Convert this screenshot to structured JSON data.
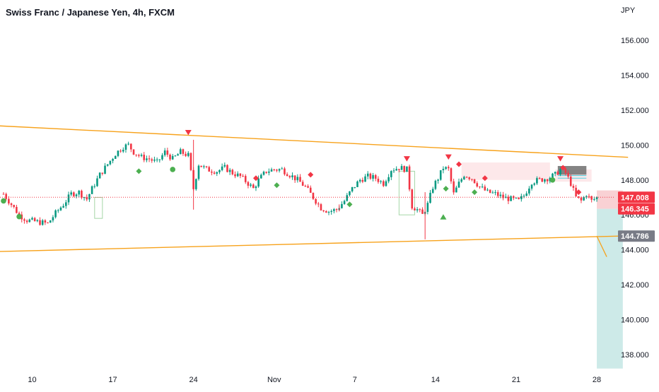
{
  "header": {
    "title": "Swiss Franc / Japanese Yen, 4h, FXCM"
  },
  "price_axis": {
    "currency_label": "JPY"
  },
  "colors": {
    "up": "#089981",
    "down": "#f23645",
    "trend_line": "#f7a21b",
    "last_price_label": "#f23645",
    "gray_label": "#787b86",
    "target_zone": "#b2dfdb",
    "stop_zone": "#f8c9cc",
    "marker_green": "#4caf50",
    "marker_red": "#f23645"
  },
  "chart_data": {
    "type": "candlestick",
    "title": "Swiss Franc / Japanese Yen, 4h, FXCM",
    "ylim": [
      137.0,
      158.0
    ],
    "y_ticks": [
      "156.000",
      "154.000",
      "152.000",
      "150.000",
      "148.000",
      "146.000",
      "144.000",
      "142.000",
      "140.000",
      "138.000"
    ],
    "x_ticks": [
      "10",
      "17",
      "24",
      "Nov",
      "7",
      "14",
      "21",
      "28"
    ],
    "x_tick_index": [
      11,
      42,
      73,
      104,
      135,
      166,
      197,
      228
    ],
    "grid": false,
    "price_series": [
      {
        "i": 0,
        "p": 147.2
      },
      {
        "i": 3,
        "p": 146.6
      },
      {
        "i": 6,
        "p": 146.0
      },
      {
        "i": 9,
        "p": 145.7
      },
      {
        "i": 13,
        "p": 145.6
      },
      {
        "i": 17,
        "p": 145.5
      },
      {
        "i": 20,
        "p": 146.1
      },
      {
        "i": 23,
        "p": 146.6
      },
      {
        "i": 26,
        "p": 147.2
      },
      {
        "i": 29,
        "p": 147.3
      },
      {
        "i": 32,
        "p": 146.9
      },
      {
        "i": 34,
        "p": 147.5
      },
      {
        "i": 37,
        "p": 148.3
      },
      {
        "i": 40,
        "p": 148.9
      },
      {
        "i": 43,
        "p": 149.5
      },
      {
        "i": 46,
        "p": 149.9
      },
      {
        "i": 48,
        "p": 150.0
      },
      {
        "i": 50,
        "p": 149.6
      },
      {
        "i": 53,
        "p": 149.3
      },
      {
        "i": 56,
        "p": 149.2
      },
      {
        "i": 59,
        "p": 149.0
      },
      {
        "i": 62,
        "p": 149.6
      },
      {
        "i": 65,
        "p": 149.2
      },
      {
        "i": 68,
        "p": 149.6
      },
      {
        "i": 71,
        "p": 149.4
      },
      {
        "i": 73,
        "p": 147.5
      },
      {
        "i": 75,
        "p": 148.9
      },
      {
        "i": 78,
        "p": 148.6
      },
      {
        "i": 82,
        "p": 148.5
      },
      {
        "i": 85,
        "p": 148.7
      },
      {
        "i": 88,
        "p": 148.4
      },
      {
        "i": 91,
        "p": 148.2
      },
      {
        "i": 94,
        "p": 147.8
      },
      {
        "i": 96,
        "p": 147.5
      },
      {
        "i": 98,
        "p": 148.0
      },
      {
        "i": 101,
        "p": 148.5
      },
      {
        "i": 104,
        "p": 148.6
      },
      {
        "i": 107,
        "p": 148.6
      },
      {
        "i": 110,
        "p": 148.3
      },
      {
        "i": 113,
        "p": 148.0
      },
      {
        "i": 116,
        "p": 147.6
      },
      {
        "i": 119,
        "p": 147.0
      },
      {
        "i": 122,
        "p": 146.4
      },
      {
        "i": 125,
        "p": 146.2
      },
      {
        "i": 128,
        "p": 146.3
      },
      {
        "i": 131,
        "p": 146.8
      },
      {
        "i": 134,
        "p": 147.5
      },
      {
        "i": 137,
        "p": 148.0
      },
      {
        "i": 140,
        "p": 148.2
      },
      {
        "i": 143,
        "p": 148.1
      },
      {
        "i": 146,
        "p": 147.8
      },
      {
        "i": 149,
        "p": 148.6
      },
      {
        "i": 152,
        "p": 148.7
      },
      {
        "i": 155,
        "p": 148.6
      },
      {
        "i": 157,
        "p": 146.5
      },
      {
        "i": 159,
        "p": 146.3
      },
      {
        "i": 161,
        "p": 146.0
      },
      {
        "i": 163,
        "p": 146.6
      },
      {
        "i": 165,
        "p": 147.6
      },
      {
        "i": 167,
        "p": 148.1
      },
      {
        "i": 169,
        "p": 148.7
      },
      {
        "i": 171,
        "p": 148.6
      },
      {
        "i": 173,
        "p": 147.2
      },
      {
        "i": 175,
        "p": 147.8
      },
      {
        "i": 177,
        "p": 148.3
      },
      {
        "i": 180,
        "p": 148.1
      },
      {
        "i": 183,
        "p": 147.6
      },
      {
        "i": 186,
        "p": 147.3
      },
      {
        "i": 189,
        "p": 147.2
      },
      {
        "i": 192,
        "p": 147.0
      },
      {
        "i": 195,
        "p": 146.9
      },
      {
        "i": 198,
        "p": 146.8
      },
      {
        "i": 200,
        "p": 147.1
      },
      {
        "i": 203,
        "p": 147.9
      },
      {
        "i": 206,
        "p": 148.0
      },
      {
        "i": 209,
        "p": 148.1
      },
      {
        "i": 212,
        "p": 148.3
      },
      {
        "i": 214,
        "p": 148.6
      },
      {
        "i": 216,
        "p": 148.4
      },
      {
        "i": 218,
        "p": 147.8
      },
      {
        "i": 220,
        "p": 147.0
      },
      {
        "i": 222,
        "p": 146.8
      },
      {
        "i": 224,
        "p": 147.2
      },
      {
        "i": 226,
        "p": 146.8
      },
      {
        "i": 228,
        "p": 147.0
      }
    ],
    "trend_lines": [
      {
        "start": {
          "i": -2,
          "p": 151.1
        },
        "end": {
          "i": 240,
          "p": 149.3
        }
      },
      {
        "start": {
          "i": -2,
          "p": 143.9
        },
        "end": {
          "i": 240,
          "p": 144.8
        }
      }
    ],
    "signals": [
      {
        "i": 71,
        "p": 150.7,
        "type": "sell"
      },
      {
        "i": 155,
        "p": 149.2,
        "type": "sell"
      },
      {
        "i": 171,
        "p": 149.3,
        "type": "sell"
      },
      {
        "i": 214,
        "p": 149.2,
        "type": "sell"
      },
      {
        "i": 169,
        "p": 145.9,
        "type": "buy"
      }
    ],
    "markers": [
      {
        "i": 0,
        "p": 146.8,
        "color": "green",
        "shape": "circle"
      },
      {
        "i": 6,
        "p": 145.9,
        "color": "green",
        "shape": "circle"
      },
      {
        "i": 52,
        "p": 148.5,
        "color": "green",
        "shape": "diamond"
      },
      {
        "i": 65,
        "p": 148.6,
        "color": "green",
        "shape": "circle"
      },
      {
        "i": 97,
        "p": 148.1,
        "color": "red",
        "shape": "diamond"
      },
      {
        "i": 105,
        "p": 147.7,
        "color": "green",
        "shape": "diamond"
      },
      {
        "i": 118,
        "p": 148.3,
        "color": "red",
        "shape": "diamond"
      },
      {
        "i": 133,
        "p": 146.6,
        "color": "green",
        "shape": "diamond"
      },
      {
        "i": 170,
        "p": 147.5,
        "color": "green",
        "shape": "diamond"
      },
      {
        "i": 175,
        "p": 148.9,
        "color": "red",
        "shape": "diamond"
      },
      {
        "i": 181,
        "p": 147.3,
        "color": "green",
        "shape": "diamond"
      },
      {
        "i": 185,
        "p": 148.1,
        "color": "red",
        "shape": "diamond"
      },
      {
        "i": 211,
        "p": 148.0,
        "color": "green",
        "shape": "circle"
      },
      {
        "i": 215,
        "p": 148.7,
        "color": "red",
        "shape": "diamond"
      },
      {
        "i": 221,
        "p": 147.3,
        "color": "red",
        "shape": "diamond"
      }
    ],
    "supply_zones": [
      {
        "i0": 176,
        "i1": 210,
        "p0": 148.0,
        "p1": 149.0
      },
      {
        "i0": 212,
        "i1": 226,
        "p0": 147.9,
        "p1": 148.6
      }
    ],
    "demand_zones": [
      {
        "i0": 152,
        "i1": 158,
        "p0": 146.0,
        "p1": 148.5
      },
      {
        "i0": 35,
        "i1": 38,
        "p0": 145.8,
        "p1": 147.0
      }
    ],
    "gray_box": {
      "i0": 213,
      "i1": 224,
      "p0": 148.3,
      "p1": 148.8
    },
    "cyan_lines": [
      {
        "i0": 213,
        "i1": 224,
        "p": 148.1
      },
      {
        "i0": 213,
        "i1": 224,
        "p": 148.25
      }
    ],
    "position": {
      "i0": 228,
      "i1": 238,
      "entry": 146.345,
      "stop": 147.4,
      "target": 137.2,
      "path_end": {
        "i": 238,
        "p": 143.6
      }
    },
    "current_price": 147.008,
    "price_labels": [
      {
        "value": "147.008",
        "p": 147.008,
        "color": "red"
      },
      {
        "value": "146.345",
        "p": 146.345,
        "color": "red"
      },
      {
        "value": "144.786",
        "p": 144.786,
        "color": "gray"
      }
    ]
  }
}
